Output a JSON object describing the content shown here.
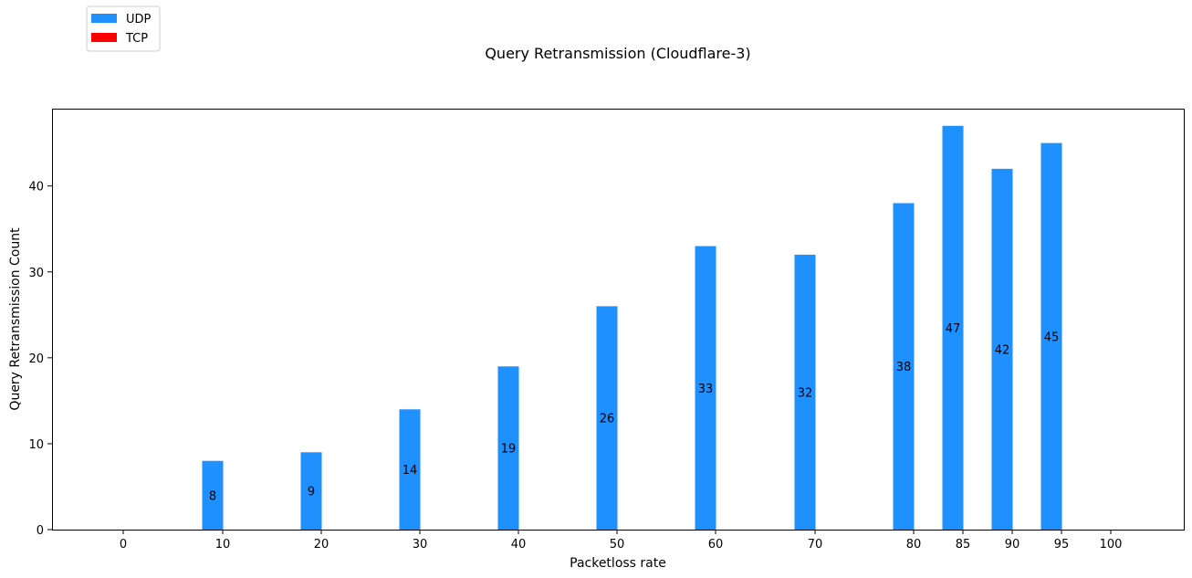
{
  "chart_data": {
    "type": "bar",
    "title": "Query Retransmission (Cloudflare-3)",
    "xlabel": "Packetloss rate",
    "ylabel": "Query Retransmission Count",
    "categories": [
      "0",
      "10",
      "20",
      "30",
      "40",
      "50",
      "60",
      "70",
      "80",
      "85",
      "90",
      "95",
      "100"
    ],
    "series": [
      {
        "name": "UDP",
        "color": "#1e90ff",
        "values": [
          0,
          8,
          9,
          14,
          19,
          26,
          33,
          32,
          38,
          47,
          42,
          45,
          0
        ]
      },
      {
        "name": "TCP",
        "color": "#ff0000",
        "values": [
          0,
          0,
          0,
          0,
          0,
          0,
          0,
          0,
          0,
          0,
          0,
          0,
          0
        ]
      }
    ],
    "data_labels": [
      "8",
      "9",
      "14",
      "19",
      "26",
      "33",
      "32",
      "38",
      "47",
      "42",
      "45"
    ],
    "yticks": [
      0,
      10,
      20,
      30,
      40
    ],
    "ylim": [
      0,
      49
    ],
    "legend": "upper-left",
    "grid": false
  }
}
